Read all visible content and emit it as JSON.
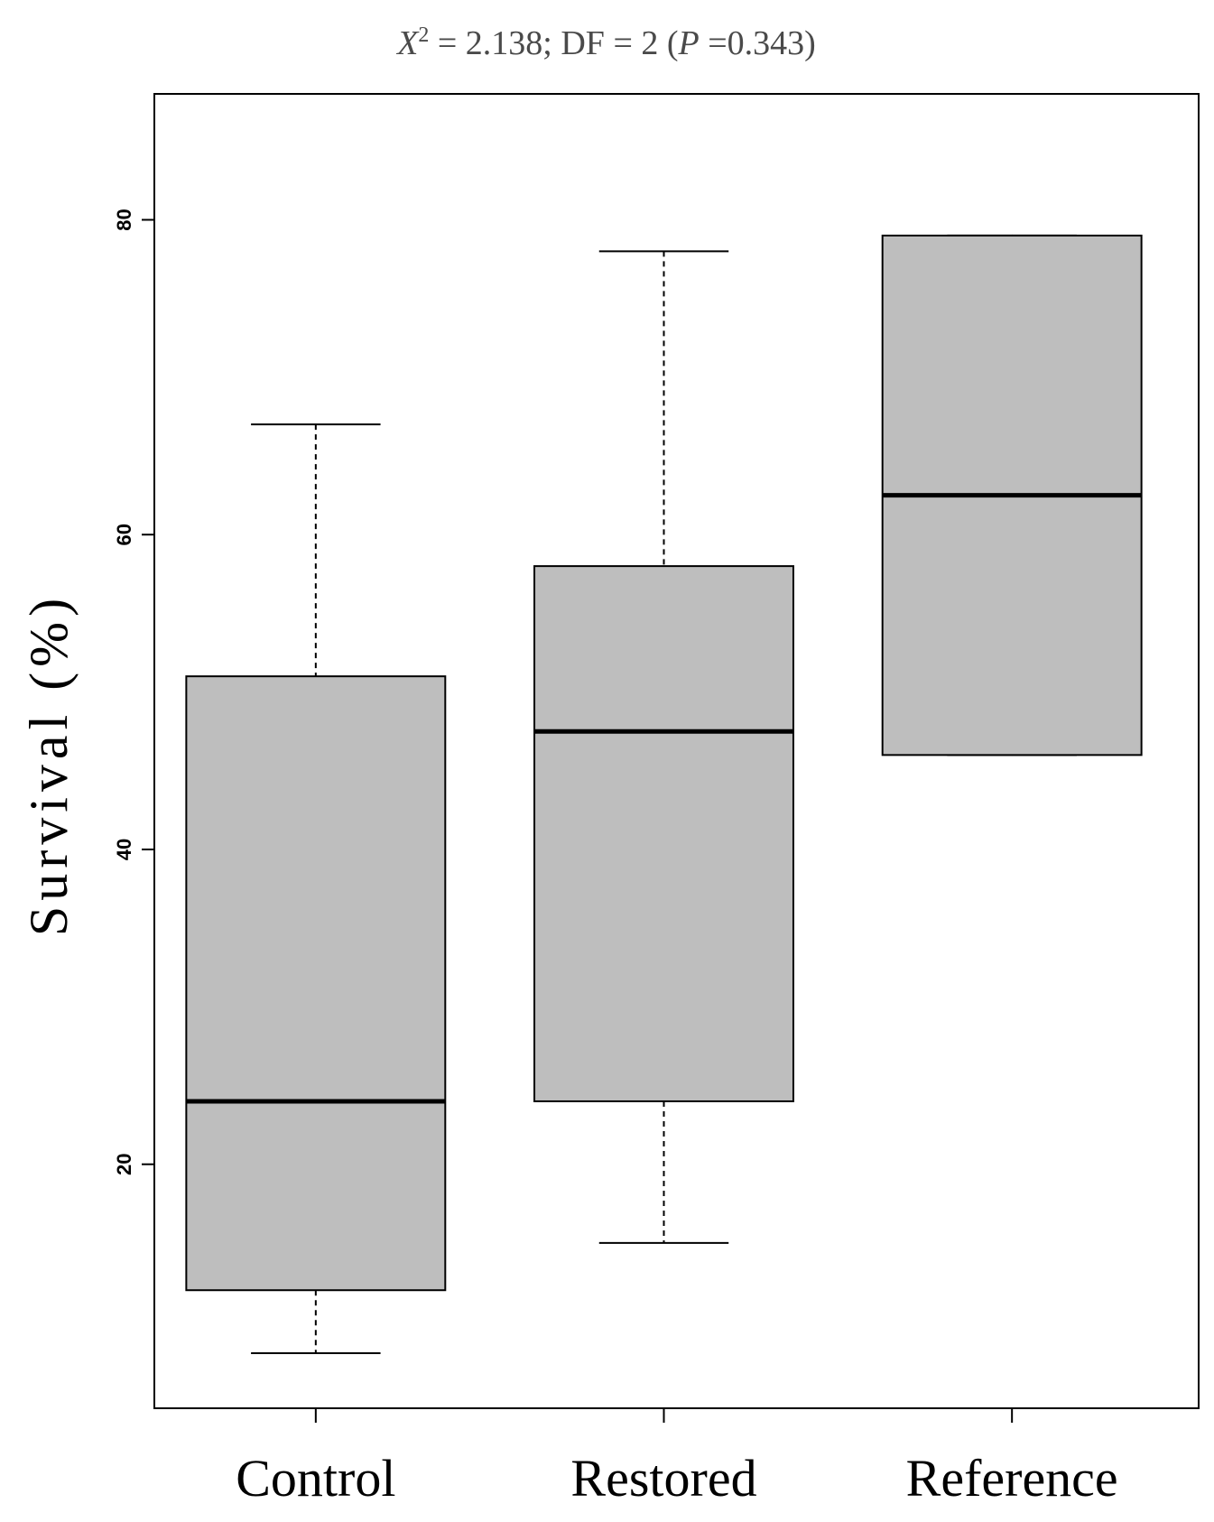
{
  "chart_data": {
    "type": "boxplot",
    "title": {
      "x_symbol": "X",
      "superscript": "2",
      "stat_text": " = 2.138; DF = 2 (",
      "p_symbol": "P",
      "p_text": " =0.343)"
    },
    "xlabel": "",
    "ylabel": "Survival (%)",
    "ylim": [
      4.5,
      88
    ],
    "yticks": [
      20,
      40,
      60,
      80
    ],
    "ytick_labels": [
      "20",
      "40",
      "60",
      "80"
    ],
    "categories": [
      "Control",
      "Restored",
      "Reference"
    ],
    "series": [
      {
        "category": "Control",
        "whisker_low": 8.0,
        "q1": 12.0,
        "median": 24.0,
        "q3": 51.0,
        "whisker_high": 67.0
      },
      {
        "category": "Restored",
        "whisker_low": 15.0,
        "q1": 24.0,
        "median": 47.5,
        "q3": 58.0,
        "whisker_high": 78.0
      },
      {
        "category": "Reference",
        "whisker_low": 46.0,
        "q1": 46.0,
        "median": 62.5,
        "q3": 79.0,
        "whisker_high": 79.0
      }
    ],
    "colors": {
      "box_fill": "#bebebe",
      "stroke": "#000000",
      "title": "#4a4a4a"
    },
    "grid": false,
    "legend": "none"
  }
}
